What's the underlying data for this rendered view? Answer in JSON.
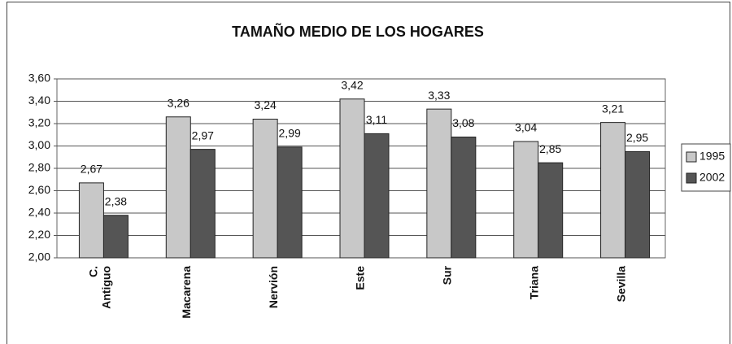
{
  "chart_data": {
    "type": "bar",
    "title": "TAMAÑO MEDIO DE LOS HOGARES",
    "categories": [
      "C. Antiguo",
      "Macarena",
      "Nervión",
      "Este",
      "Sur",
      "Triana",
      "Sevilla"
    ],
    "series": [
      {
        "name": "1995",
        "color": "#c8c8c8",
        "values": [
          2.67,
          3.26,
          3.24,
          3.42,
          3.33,
          3.04,
          3.21
        ],
        "value_labels": [
          "2,67",
          "3,26",
          "3,24",
          "3,42",
          "3,33",
          "3,04",
          "3,21"
        ]
      },
      {
        "name": "2002",
        "color": "#555555",
        "values": [
          2.38,
          2.97,
          2.99,
          3.11,
          3.08,
          2.85,
          2.95
        ],
        "value_labels": [
          "2,38",
          "2,97",
          "2,99",
          "3,11",
          "3,08",
          "2,85",
          "2,95"
        ]
      }
    ],
    "ylim": [
      2.0,
      3.6
    ],
    "yticks": [
      {
        "value": 2.0,
        "label": "2,00"
      },
      {
        "value": 2.2,
        "label": "2,20"
      },
      {
        "value": 2.4,
        "label": "2,40"
      },
      {
        "value": 2.6,
        "label": "2,60"
      },
      {
        "value": 2.8,
        "label": "2,80"
      },
      {
        "value": 3.0,
        "label": "3,00"
      },
      {
        "value": 3.2,
        "label": "3,20"
      },
      {
        "value": 3.4,
        "label": "3,40"
      },
      {
        "value": 3.6,
        "label": "3,60"
      }
    ],
    "grid": true,
    "legend": "right"
  }
}
